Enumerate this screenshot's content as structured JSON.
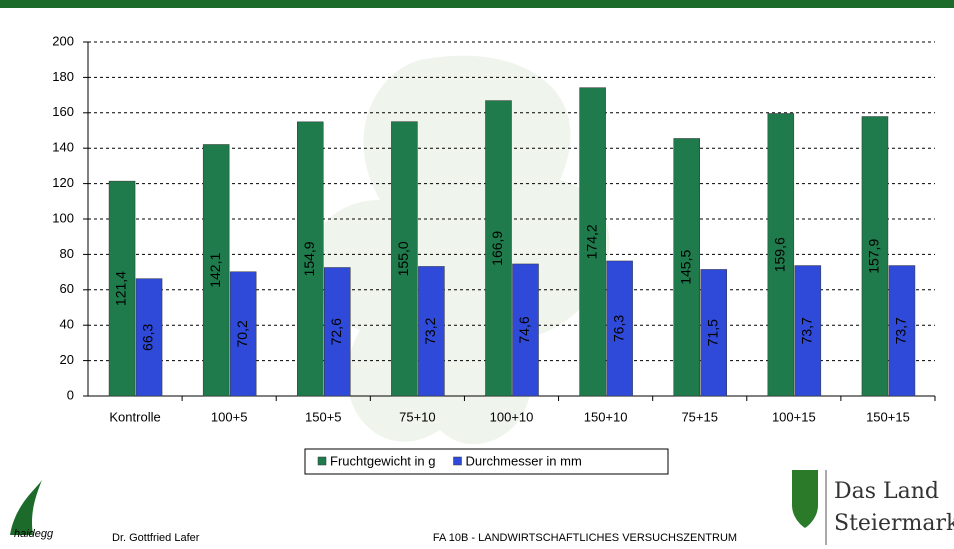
{
  "chart_data": {
    "type": "bar",
    "categories": [
      "Kontrolle",
      "100+5",
      "150+5",
      "75+10",
      "100+10",
      "150+10",
      "75+15",
      "100+15",
      "150+15"
    ],
    "series": [
      {
        "name": "Fruchtgewicht in g",
        "color": "#1f7a4c",
        "values": [
          121.4,
          142.1,
          154.9,
          155.0,
          166.9,
          174.2,
          145.5,
          159.6,
          157.9
        ],
        "value_labels": [
          "121,4",
          "142,1",
          "154,9",
          "155,0",
          "166,9",
          "174,2",
          "145,5",
          "159,6",
          "157,9"
        ]
      },
      {
        "name": "Durchmesser in mm",
        "color": "#2f4ad8",
        "values": [
          66.3,
          70.2,
          72.6,
          73.2,
          74.6,
          76.3,
          71.5,
          73.7,
          73.7
        ],
        "value_labels": [
          "66,3",
          "70,2",
          "72,6",
          "73,2",
          "74,6",
          "76,3",
          "71,5",
          "73,7",
          "73,7"
        ]
      }
    ],
    "ylim": [
      0,
      200
    ],
    "yticks": [
      0,
      20,
      40,
      60,
      80,
      100,
      120,
      140,
      160,
      180,
      200
    ],
    "grid": true
  },
  "footer": {
    "author": "Dr. Gottfried Lafer",
    "institute": "FA 10B - LANDWIRTSCHAFTLICHES VERSUCHSZENTRUM",
    "logo_left": "haidegg",
    "logo_right_line1": "Das Land",
    "logo_right_line2": "Steiermark"
  }
}
